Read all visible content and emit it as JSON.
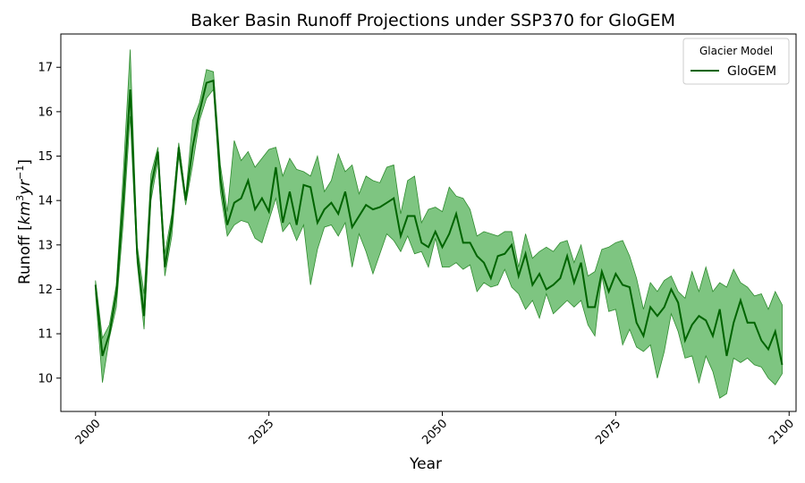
{
  "chart_data": {
    "type": "line",
    "title": "Baker Basin Runoff Projections under SSP370 for GloGEM",
    "xlabel": "Year",
    "ylabel_main": "Runoff [",
    "ylabel_unit_base": "km",
    "ylabel_unit_exp1": "3",
    "ylabel_unit_mid": "yr",
    "ylabel_unit_exp2": "−1",
    "ylabel_close": "]",
    "xlim": [
      1995,
      2101
    ],
    "ylim": [
      9.25,
      17.75
    ],
    "xticks": [
      2000,
      2025,
      2050,
      2075,
      2100
    ],
    "yticks": [
      10,
      11,
      12,
      13,
      14,
      15,
      16,
      17
    ],
    "grid": false,
    "legend": {
      "title": "Glacier Model",
      "placement": "top-right",
      "entries": [
        "GloGEM"
      ]
    },
    "colors": {
      "line": "#006400",
      "band": "#4caf50",
      "band_edge": "#2e8b2e"
    },
    "series": [
      {
        "name": "GloGEM",
        "x": [
          2000,
          2001,
          2002,
          2003,
          2004,
          2005,
          2006,
          2007,
          2008,
          2009,
          2010,
          2011,
          2012,
          2013,
          2014,
          2015,
          2016,
          2017,
          2018,
          2019,
          2020,
          2021,
          2022,
          2023,
          2024,
          2025,
          2026,
          2027,
          2028,
          2029,
          2030,
          2031,
          2032,
          2033,
          2034,
          2035,
          2036,
          2037,
          2038,
          2039,
          2040,
          2041,
          2042,
          2043,
          2044,
          2045,
          2046,
          2047,
          2048,
          2049,
          2050,
          2051,
          2052,
          2053,
          2054,
          2055,
          2056,
          2057,
          2058,
          2059,
          2060,
          2061,
          2062,
          2063,
          2064,
          2065,
          2066,
          2067,
          2068,
          2069,
          2070,
          2071,
          2072,
          2073,
          2074,
          2075,
          2076,
          2077,
          2078,
          2079,
          2080,
          2081,
          2082,
          2083,
          2084,
          2085,
          2086,
          2087,
          2088,
          2089,
          2090,
          2091,
          2092,
          2093,
          2094,
          2095,
          2096,
          2097,
          2098,
          2099
        ],
        "mean": [
          12.1,
          10.5,
          11.0,
          11.9,
          14.0,
          16.5,
          12.8,
          11.4,
          14.3,
          15.1,
          12.5,
          13.5,
          15.2,
          14.0,
          15.2,
          16.0,
          16.65,
          16.7,
          14.5,
          13.45,
          13.95,
          14.05,
          14.45,
          13.8,
          14.05,
          13.75,
          14.75,
          13.5,
          14.2,
          13.45,
          14.35,
          14.3,
          13.5,
          13.8,
          13.95,
          13.7,
          14.2,
          13.4,
          13.65,
          13.9,
          13.8,
          13.85,
          13.95,
          14.05,
          13.2,
          13.65,
          13.65,
          13.05,
          12.95,
          13.3,
          12.95,
          13.25,
          13.7,
          13.05,
          13.05,
          12.75,
          12.6,
          12.25,
          12.75,
          12.8,
          13.0,
          12.3,
          12.8,
          12.1,
          12.35,
          12.0,
          12.1,
          12.25,
          12.75,
          12.15,
          12.6,
          11.6,
          11.6,
          12.4,
          11.95,
          12.35,
          12.1,
          12.05,
          11.25,
          10.95,
          11.6,
          11.4,
          11.6,
          12.0,
          11.7,
          10.85,
          11.2,
          11.4,
          11.3,
          10.95,
          11.55,
          10.5,
          11.25,
          11.75,
          11.25,
          11.25,
          10.85,
          10.65,
          11.05,
          10.3
        ],
        "upper": [
          12.2,
          10.9,
          11.2,
          12.1,
          14.6,
          17.4,
          13.0,
          11.9,
          14.6,
          15.2,
          12.8,
          13.7,
          15.3,
          14.1,
          15.8,
          16.2,
          16.95,
          16.9,
          14.8,
          13.75,
          15.35,
          14.9,
          15.1,
          14.75,
          14.95,
          15.15,
          15.2,
          14.55,
          14.95,
          14.7,
          14.65,
          14.55,
          15.0,
          14.2,
          14.45,
          15.05,
          14.65,
          14.8,
          14.15,
          14.55,
          14.45,
          14.4,
          14.75,
          14.8,
          13.7,
          14.45,
          14.55,
          13.5,
          13.8,
          13.85,
          13.75,
          14.3,
          14.1,
          14.05,
          13.8,
          13.2,
          13.3,
          13.25,
          13.2,
          13.3,
          13.3,
          12.5,
          13.25,
          12.7,
          12.85,
          12.95,
          12.85,
          13.05,
          13.1,
          12.6,
          13.0,
          12.3,
          12.4,
          12.9,
          12.95,
          13.05,
          13.1,
          12.75,
          12.25,
          11.55,
          12.15,
          11.95,
          12.2,
          12.3,
          11.95,
          11.8,
          12.4,
          11.95,
          12.5,
          11.95,
          12.15,
          12.05,
          12.45,
          12.15,
          12.05,
          11.85,
          11.9,
          11.55,
          11.95,
          11.65
        ],
        "lower": [
          11.9,
          9.9,
          10.9,
          11.6,
          13.5,
          15.9,
          12.6,
          11.1,
          14.0,
          14.9,
          12.3,
          13.2,
          15.0,
          13.9,
          14.8,
          15.8,
          16.3,
          16.5,
          14.2,
          13.2,
          13.45,
          13.55,
          13.5,
          13.15,
          13.05,
          13.55,
          14.05,
          13.3,
          13.5,
          13.1,
          13.45,
          12.1,
          12.9,
          13.4,
          13.45,
          13.2,
          13.5,
          12.5,
          13.25,
          12.85,
          12.35,
          12.8,
          13.25,
          13.1,
          12.85,
          13.2,
          12.8,
          12.85,
          12.5,
          13.15,
          12.5,
          12.5,
          12.6,
          12.45,
          12.55,
          11.95,
          12.15,
          12.05,
          12.1,
          12.45,
          12.05,
          11.9,
          11.55,
          11.75,
          11.35,
          11.9,
          11.45,
          11.6,
          11.75,
          11.6,
          11.75,
          11.2,
          10.95,
          12.3,
          11.5,
          11.55,
          10.75,
          11.1,
          10.7,
          10.6,
          10.75,
          10.0,
          10.6,
          11.45,
          11.05,
          10.45,
          10.5,
          9.9,
          10.5,
          10.15,
          9.55,
          9.65,
          10.45,
          10.35,
          10.45,
          10.3,
          10.25,
          10.0,
          9.85,
          10.1
        ]
      }
    ]
  }
}
